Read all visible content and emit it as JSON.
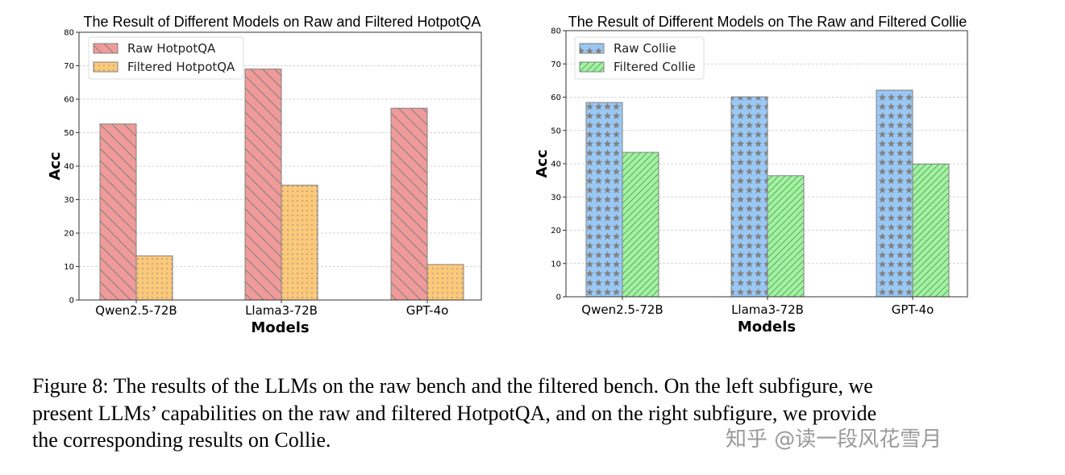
{
  "chart_data": [
    {
      "type": "bar",
      "title": "The Result of Different Models on Raw and Filtered HotpotQA",
      "xlabel": "Models",
      "ylabel": "Acc",
      "ylim": [
        0,
        80
      ],
      "yticks": [
        0,
        10,
        20,
        30,
        40,
        50,
        60,
        70,
        80
      ],
      "grid": "horizontal dashed",
      "legend_placement": "top-left",
      "categories": [
        "Qwen2.5-72B",
        "Llama3-72B",
        "GPT-4o"
      ],
      "series": [
        {
          "name": "Raw HotpotQA",
          "values": [
            52.6,
            69.0,
            57.3
          ],
          "color": "#f09a9a",
          "hatch": "backslash"
        },
        {
          "name": "Filtered HotpotQA",
          "values": [
            13.2,
            34.3,
            10.6
          ],
          "color": "#fcc97a",
          "hatch": "dots"
        }
      ]
    },
    {
      "type": "bar",
      "title": "The Result of Different Models on The Raw and Filtered Collie",
      "xlabel": "Models",
      "ylabel": "Acc",
      "ylim": [
        0,
        80
      ],
      "yticks": [
        0,
        10,
        20,
        30,
        40,
        50,
        60,
        70,
        80
      ],
      "grid": "horizontal dashed",
      "legend_placement": "top-left",
      "categories": [
        "Qwen2.5-72B",
        "Llama3-72B",
        "GPT-4o"
      ],
      "series": [
        {
          "name": "Raw Collie",
          "values": [
            58.4,
            60.1,
            62.1
          ],
          "color": "#99c8f5",
          "hatch": "stars"
        },
        {
          "name": "Filtered Collie",
          "values": [
            43.4,
            36.4,
            39.9
          ],
          "color": "#9ef59e",
          "hatch": "slash"
        }
      ]
    }
  ],
  "caption": [
    "Figure 8: The results of the LLMs on the raw bench and the filtered bench. On the left subfigure, we",
    "present LLMs’ capabilities on the raw and filtered HotpotQA, and on the right subfigure, we provide",
    "the corresponding results on Collie."
  ],
  "watermark": "知乎 @读一段风花雪月"
}
